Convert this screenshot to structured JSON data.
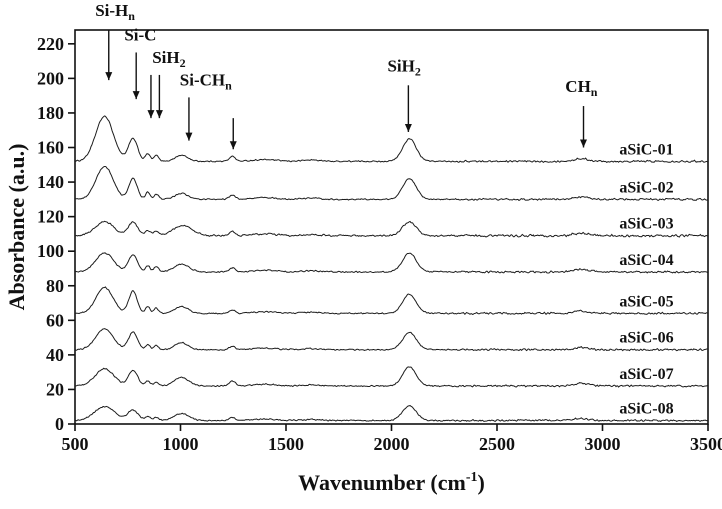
{
  "figure": {
    "background": "#ffffff",
    "ink_color": "#111111"
  },
  "chart_data": {
    "type": "line",
    "title": "",
    "xlabel": {
      "prefix": "Wavenumber (cm",
      "sup": "-1",
      "suffix": ")"
    },
    "ylabel": "Absorbance (a.u.)",
    "xlim": [
      500,
      3500
    ],
    "ylim": [
      0,
      228
    ],
    "x_ticks": [
      500,
      1000,
      1500,
      2000,
      2500,
      3000,
      3500
    ],
    "y_ticks": [
      0,
      20,
      40,
      60,
      80,
      100,
      120,
      140,
      160,
      180,
      200,
      220
    ],
    "grid": false,
    "legend": "none",
    "series_label_x": 3080,
    "series": [
      {
        "name": "aSiC-01",
        "baseline": 152,
        "noise": 0.7,
        "peaks": [
          [
            640,
            42,
            26
          ],
          [
            775,
            22,
            13
          ],
          [
            845,
            11,
            4.5
          ],
          [
            885,
            11,
            3.5
          ],
          [
            1005,
            30,
            3.5
          ],
          [
            1245,
            14,
            3
          ],
          [
            1400,
            55,
            1.0
          ],
          [
            1620,
            40,
            0.8
          ],
          [
            2085,
            32,
            13
          ],
          [
            2900,
            35,
            1.5
          ]
        ]
      },
      {
        "name": "aSiC-02",
        "baseline": 130,
        "noise": 0.7,
        "peaks": [
          [
            640,
            40,
            19
          ],
          [
            775,
            20,
            12
          ],
          [
            845,
            11,
            4
          ],
          [
            885,
            11,
            3
          ],
          [
            1005,
            30,
            3.5
          ],
          [
            1245,
            14,
            2.5
          ],
          [
            1400,
            55,
            1.0
          ],
          [
            1620,
            40,
            0.8
          ],
          [
            2085,
            32,
            12
          ],
          [
            2900,
            35,
            1.5
          ]
        ]
      },
      {
        "name": "aSiC-03",
        "baseline": 109,
        "noise": 0.9,
        "peaks": [
          [
            640,
            45,
            8
          ],
          [
            775,
            22,
            8
          ],
          [
            845,
            12,
            3
          ],
          [
            885,
            12,
            2.5
          ],
          [
            1010,
            45,
            6
          ],
          [
            1245,
            14,
            2.5
          ],
          [
            1400,
            55,
            1.0
          ],
          [
            1620,
            40,
            0.7
          ],
          [
            2085,
            32,
            8
          ],
          [
            2900,
            35,
            1.3
          ]
        ]
      },
      {
        "name": "aSiC-04",
        "baseline": 88,
        "noise": 0.7,
        "peaks": [
          [
            640,
            42,
            11
          ],
          [
            775,
            22,
            10
          ],
          [
            845,
            11,
            3.5
          ],
          [
            885,
            11,
            3
          ],
          [
            1005,
            35,
            4.5
          ],
          [
            1245,
            14,
            2.5
          ],
          [
            1400,
            55,
            1.0
          ],
          [
            1620,
            40,
            0.7
          ],
          [
            2085,
            32,
            11
          ],
          [
            2900,
            35,
            1.4
          ]
        ]
      },
      {
        "name": "aSiC-05",
        "baseline": 64,
        "noise": 0.7,
        "peaks": [
          [
            640,
            40,
            15
          ],
          [
            775,
            20,
            13
          ],
          [
            845,
            11,
            4
          ],
          [
            885,
            11,
            3
          ],
          [
            1005,
            32,
            4
          ],
          [
            1245,
            14,
            2
          ],
          [
            1400,
            55,
            1.0
          ],
          [
            1620,
            40,
            0.7
          ],
          [
            2085,
            32,
            11
          ],
          [
            2900,
            35,
            1.4
          ]
        ]
      },
      {
        "name": "aSiC-06",
        "baseline": 43,
        "noise": 0.7,
        "peaks": [
          [
            640,
            42,
            12
          ],
          [
            775,
            21,
            10
          ],
          [
            845,
            11,
            3
          ],
          [
            885,
            11,
            2.5
          ],
          [
            1005,
            32,
            4
          ],
          [
            1245,
            14,
            2
          ],
          [
            1400,
            55,
            0.9
          ],
          [
            1620,
            40,
            0.6
          ],
          [
            2085,
            32,
            10
          ],
          [
            2900,
            35,
            1.3
          ]
        ]
      },
      {
        "name": "aSiC-07",
        "baseline": 22,
        "noise": 0.7,
        "peaks": [
          [
            640,
            44,
            10
          ],
          [
            775,
            22,
            9
          ],
          [
            845,
            11,
            3
          ],
          [
            885,
            11,
            2.5
          ],
          [
            1005,
            35,
            5
          ],
          [
            1245,
            14,
            3
          ],
          [
            1400,
            55,
            1.0
          ],
          [
            1620,
            40,
            0.7
          ],
          [
            2085,
            32,
            11
          ],
          [
            2900,
            35,
            1.4
          ]
        ]
      },
      {
        "name": "aSiC-08",
        "baseline": 2,
        "noise": 0.7,
        "peaks": [
          [
            640,
            48,
            8
          ],
          [
            775,
            24,
            6
          ],
          [
            845,
            12,
            2.5
          ],
          [
            885,
            12,
            2
          ],
          [
            1005,
            35,
            4
          ],
          [
            1245,
            14,
            1.8
          ],
          [
            1400,
            55,
            0.8
          ],
          [
            1620,
            40,
            0.6
          ],
          [
            2085,
            32,
            8.5
          ],
          [
            2900,
            35,
            1.2
          ]
        ]
      }
    ],
    "annotations": [
      {
        "text": "Si-H",
        "sub": "n",
        "label_x": 690,
        "label_y": 236,
        "arrows": [
          [
            660,
            228,
            199
          ]
        ]
      },
      {
        "text": "Si-C",
        "sub": "",
        "label_x": 810,
        "label_y": 222,
        "arrows": [
          [
            790,
            215,
            188
          ]
        ]
      },
      {
        "text": "SiH",
        "sub": "2",
        "label_x": 945,
        "label_y": 209,
        "arrows": [
          [
            860,
            202,
            177
          ],
          [
            900,
            202,
            177
          ]
        ]
      },
      {
        "text": "Si-CH",
        "sub": "n",
        "label_x": 1120,
        "label_y": 196,
        "arrows": [
          [
            1040,
            189,
            164
          ],
          [
            1250,
            177,
            159
          ]
        ]
      },
      {
        "text": "SiH",
        "sub": "2",
        "label_x": 2060,
        "label_y": 204,
        "arrows": [
          [
            2080,
            196,
            169
          ]
        ]
      },
      {
        "text": "CH",
        "sub": "n",
        "label_x": 2900,
        "label_y": 192,
        "arrows": [
          [
            2910,
            184,
            160
          ]
        ]
      }
    ]
  }
}
